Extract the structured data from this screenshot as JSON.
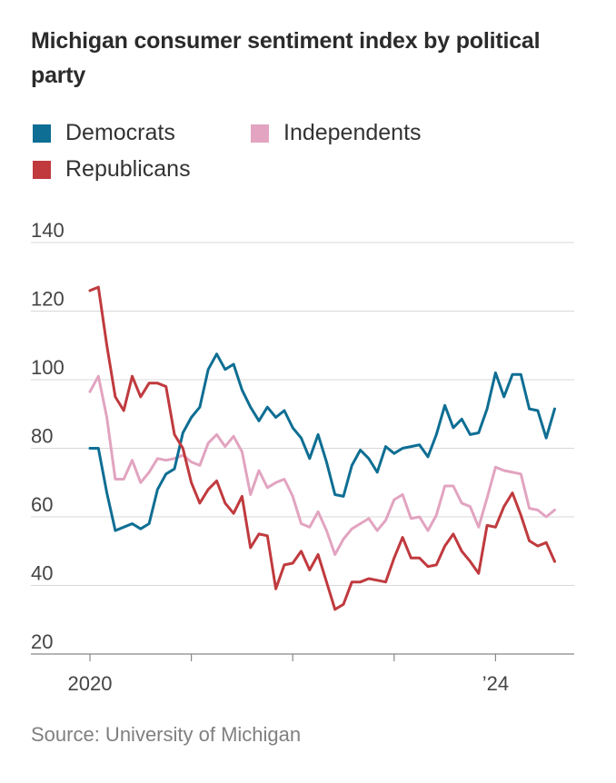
{
  "title": "Michigan consumer sentiment index by political party",
  "source": "Source: University of Michigan",
  "colors": {
    "democrats": "#0e6e93",
    "independents": "#e2a4c0",
    "republicans": "#c03a3e",
    "grid": "#d8d8d8",
    "axis": "#888888",
    "tick_text": "#444444"
  },
  "chart_data": {
    "type": "line",
    "title": "Michigan consumer sentiment index by political party",
    "xlabel": "",
    "ylabel": "",
    "x_start": "2020-01",
    "x_frequency": "monthly",
    "x_ticks": [
      {
        "x": "2020-01",
        "label": "2020"
      },
      {
        "x": "2021-01",
        "label": ""
      },
      {
        "x": "2022-01",
        "label": ""
      },
      {
        "x": "2023-01",
        "label": ""
      },
      {
        "x": "2024-01",
        "label": "’24"
      }
    ],
    "ylim": [
      20,
      140
    ],
    "yticks": [
      "140",
      "120",
      "100",
      "80",
      "60",
      "40",
      "20"
    ],
    "grid": true,
    "legend_position": "top-left",
    "series": [
      {
        "name": "Democrats",
        "color": "#0e6e93",
        "values": [
          80,
          80,
          67,
          56,
          57,
          58,
          56.5,
          58,
          68,
          72.5,
          74,
          84.5,
          89,
          92,
          103,
          107.5,
          103,
          104.5,
          97,
          92,
          88,
          92,
          89,
          91,
          86,
          83,
          77,
          84,
          76,
          66.5,
          66,
          75,
          79.5,
          77,
          73,
          80.5,
          78.5,
          80,
          80.5,
          81,
          77.5,
          84,
          92.5,
          86,
          88.5,
          84,
          84.5,
          91.5,
          102,
          95,
          101.5,
          101.5,
          91.5,
          91,
          83,
          91.5
        ]
      },
      {
        "name": "Independents",
        "color": "#e2a4c0",
        "values": [
          96.5,
          101,
          89,
          71,
          71,
          76.5,
          70,
          73,
          77,
          76.5,
          77,
          78,
          76,
          75,
          81.5,
          84,
          80.5,
          83.5,
          79,
          66.5,
          73.5,
          68.5,
          70,
          71,
          66,
          58,
          57,
          61.5,
          56,
          49,
          53.5,
          56.5,
          58,
          59.5,
          56,
          59,
          65,
          66.5,
          59.5,
          60,
          56,
          60.5,
          69,
          69,
          64,
          63,
          57,
          65.5,
          74.5,
          73.5,
          73,
          72.5,
          62.5,
          62,
          60,
          62
        ]
      },
      {
        "name": "Republicans",
        "color": "#c03a3e",
        "values": [
          126,
          127,
          110,
          95,
          91,
          101,
          95,
          99,
          99,
          98,
          84,
          80,
          70,
          64,
          68,
          70.5,
          64,
          61,
          66,
          51,
          55,
          54.5,
          39,
          46,
          46.5,
          50,
          44.5,
          49,
          41,
          33,
          34.5,
          41,
          41,
          42,
          41.5,
          41,
          48,
          54,
          48,
          48,
          45.5,
          46,
          51.5,
          55,
          50,
          47,
          43.5,
          57.5,
          57,
          63,
          67,
          60.5,
          53,
          51.5,
          52.5,
          47
        ]
      }
    ]
  }
}
